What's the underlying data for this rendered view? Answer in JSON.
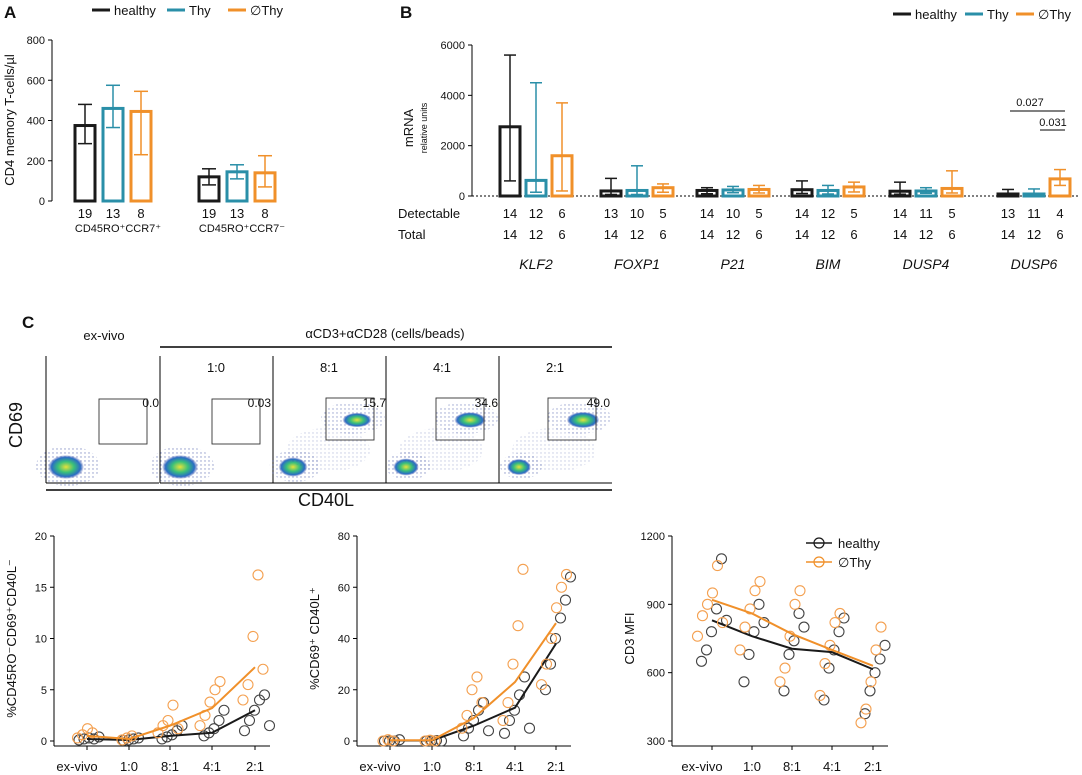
{
  "colors": {
    "healthy": "#1a1a1a",
    "thy": "#2a8fa8",
    "nothy": "#f0902a",
    "nothy_pt": "#f4a050",
    "dot_gray": "#555555"
  },
  "panel_a": {
    "letter": "A",
    "legend": [
      "healthy",
      "Thy",
      "∅Thy"
    ],
    "chart_data": {
      "type": "bar",
      "ylabel": "CD4 memory T-cells/µl",
      "ylim": [
        0,
        800
      ],
      "yticks": [
        "0",
        "200",
        "400",
        "600",
        "800"
      ],
      "groups": [
        {
          "label": "CD45RO⁺CCR7⁺",
          "values": [
            375,
            460,
            445
          ],
          "err_low": [
            285,
            365,
            230
          ],
          "err_high": [
            480,
            575,
            545
          ],
          "n": [
            "19",
            "13",
            "8"
          ]
        },
        {
          "label": "CD45RO⁺CCR7⁻",
          "values": [
            120,
            145,
            140
          ],
          "err_low": [
            80,
            110,
            70
          ],
          "err_high": [
            160,
            180,
            225
          ],
          "n": [
            "19",
            "13",
            "8"
          ]
        }
      ]
    }
  },
  "panel_b": {
    "letter": "B",
    "legend": [
      "healthy",
      "Thy",
      "∅Thy"
    ],
    "row_labels": {
      "detectable": "Detectable",
      "total": "Total"
    },
    "chart_data": {
      "type": "bar",
      "ylabel": "mRNA",
      "ylabel_sub": "relative units",
      "ylim": [
        0,
        6000
      ],
      "yticks": [
        "0",
        "2000",
        "4000",
        "6000"
      ],
      "genes": [
        {
          "name": "KLF2",
          "values": [
            2750,
            620,
            1600
          ],
          "err_low": [
            600,
            150,
            200
          ],
          "err_high": [
            5600,
            4500,
            3700
          ],
          "detectable": [
            "14",
            "12",
            "6"
          ],
          "total": [
            "14",
            "12",
            "6"
          ]
        },
        {
          "name": "FOXP1",
          "values": [
            200,
            220,
            330
          ],
          "err_low": [
            60,
            60,
            150
          ],
          "err_high": [
            700,
            1200,
            480
          ],
          "detectable": [
            "13",
            "10",
            "5"
          ],
          "total": [
            "14",
            "12",
            "6"
          ]
        },
        {
          "name": "P21",
          "values": [
            220,
            240,
            260
          ],
          "err_low": [
            90,
            130,
            120
          ],
          "err_high": [
            330,
            380,
            420
          ],
          "detectable": [
            "14",
            "10",
            "5"
          ],
          "total": [
            "14",
            "12",
            "6"
          ]
        },
        {
          "name": "BIM",
          "values": [
            250,
            220,
            360
          ],
          "err_low": [
            100,
            80,
            160
          ],
          "err_high": [
            600,
            420,
            550
          ],
          "detectable": [
            "14",
            "12",
            "5"
          ],
          "total": [
            "14",
            "12",
            "6"
          ]
        },
        {
          "name": "DUSP4",
          "values": [
            190,
            200,
            300
          ],
          "err_low": [
            70,
            110,
            120
          ],
          "err_high": [
            550,
            330,
            1000
          ],
          "detectable": [
            "14",
            "11",
            "5"
          ],
          "total": [
            "14",
            "12",
            "6"
          ]
        },
        {
          "name": "DUSP6",
          "values": [
            80,
            80,
            680
          ],
          "err_low": [
            20,
            20,
            420
          ],
          "err_high": [
            260,
            280,
            1050
          ],
          "detectable": [
            "13",
            "11",
            "4"
          ],
          "total": [
            "14",
            "12",
            "6"
          ]
        }
      ],
      "annotations": [
        "0.027",
        "0.031"
      ]
    }
  },
  "panel_c": {
    "letter": "C",
    "header_exvivo": "ex-vivo",
    "header_stim": "αCD3+αCD28 (cells/beads)",
    "conditions": [
      "1:0",
      "8:1",
      "4:1",
      "2:1"
    ],
    "y_axis": "CD69",
    "x_axis": "CD40L",
    "gate_values": [
      "0.0",
      "0.03",
      "15.7",
      "34.6",
      "49.0"
    ]
  },
  "panel_d": {
    "legend": [
      "healthy",
      "∅Thy"
    ],
    "categories": [
      "ex-vivo",
      "1:0",
      "8:1",
      "4:1",
      "2:1"
    ],
    "charts": [
      {
        "type": "scatter",
        "ylabel": "%CD45RO⁻CD69⁺CD40L⁻",
        "ylim": [
          0,
          20
        ],
        "yticks": [
          "0",
          "5",
          "10",
          "15",
          "20"
        ],
        "series": [
          {
            "name": "healthy",
            "median": [
              0.2,
              0.1,
              0.5,
              0.8,
              3.0
            ],
            "points": [
              [
                0.1,
                0.2,
                0.3,
                0.2,
                0.4
              ],
              [
                0.05,
                0.1,
                0.2,
                0.3
              ],
              [
                0.2,
                0.4,
                0.6,
                1.0,
                1.5
              ],
              [
                0.5,
                0.8,
                1.2,
                2.0,
                3.0
              ],
              [
                1.0,
                2.0,
                3.0,
                4.0,
                4.5,
                1.5
              ]
            ]
          },
          {
            "name": "∅Thy",
            "median": [
              0.5,
              0.2,
              1.5,
              3.2,
              7.2
            ],
            "points": [
              [
                0.3,
                0.6,
                1.2,
                0.8
              ],
              [
                0.1,
                0.3,
                0.5
              ],
              [
                0.8,
                1.5,
                2.0,
                3.5,
                1.2
              ],
              [
                1.5,
                2.5,
                3.8,
                5.0,
                5.8
              ],
              [
                4.0,
                5.5,
                10.2,
                16.2,
                7.0
              ]
            ]
          }
        ]
      },
      {
        "type": "scatter",
        "ylabel": "%CD69⁺ CD40L⁺",
        "ylim": [
          0,
          80
        ],
        "yticks": [
          "0",
          "20",
          "40",
          "60",
          "80"
        ],
        "series": [
          {
            "name": "healthy",
            "median": [
              0.2,
              0.2,
              6,
              13,
              38
            ],
            "points": [
              [
                0,
                0,
                0,
                0.5
              ],
              [
                0,
                0,
                0.2,
                0
              ],
              [
                2,
                5,
                8,
                12,
                15,
                4
              ],
              [
                3,
                8,
                12,
                18,
                25,
                5
              ],
              [
                20,
                30,
                40,
                48,
                55,
                64
              ]
            ]
          },
          {
            "name": "∅Thy",
            "median": [
              0.3,
              0.3,
              9,
              23,
              46
            ],
            "points": [
              [
                0,
                0.5,
                0
              ],
              [
                0,
                0.3,
                0
              ],
              [
                5,
                10,
                20,
                25,
                15
              ],
              [
                8,
                15,
                30,
                45,
                67
              ],
              [
                22,
                30,
                40,
                52,
                60,
                65
              ]
            ]
          }
        ]
      },
      {
        "type": "scatter",
        "ylabel": "CD3 MFI",
        "ylim": [
          300,
          1200
        ],
        "yticks": [
          "300",
          "600",
          "900",
          "1200"
        ],
        "series": [
          {
            "name": "healthy",
            "median": [
              830,
              760,
              705,
              690,
              615
            ],
            "points": [
              [
                650,
                700,
                780,
                880,
                1100,
                830
              ],
              [
                560,
                680,
                780,
                900,
                820
              ],
              [
                520,
                680,
                740,
                860,
                800
              ],
              [
                480,
                620,
                700,
                780,
                840
              ],
              [
                420,
                520,
                600,
                660,
                720
              ]
            ]
          },
          {
            "name": "∅Thy",
            "median": [
              920,
              860,
              770,
              700,
              630
            ],
            "points": [
              [
                760,
                850,
                900,
                950,
                1070,
                820
              ],
              [
                700,
                800,
                880,
                960,
                1000
              ],
              [
                560,
                620,
                760,
                900,
                960
              ],
              [
                500,
                640,
                720,
                820,
                860
              ],
              [
                380,
                440,
                560,
                700,
                800
              ]
            ]
          }
        ]
      }
    ]
  }
}
